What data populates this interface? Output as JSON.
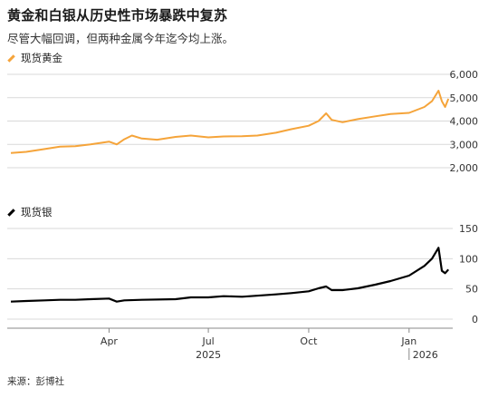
{
  "title": "黄金和白银从历史性市场暴跌中复苏",
  "subtitle": "尽管大幅回调，但两种金属今年迄今均上涨。",
  "source": "来源：彭博社",
  "colors": {
    "gold": "#f5a43a",
    "silver": "#000000",
    "grid": "#d9d9d9"
  },
  "chart_data": [
    {
      "type": "line",
      "series": [
        {
          "name": "现货黄金",
          "color": "#f5a43a"
        }
      ],
      "ylim": [
        2000,
        6000
      ],
      "yticks": [
        "2,000",
        "3,000",
        "4,000",
        "5,000",
        "6,000"
      ],
      "ytick_values": [
        2000,
        3000,
        4000,
        5000,
        6000
      ],
      "x": [
        "2025-01-01",
        "2025-01-15",
        "2025-02-01",
        "2025-02-15",
        "2025-03-01",
        "2025-03-15",
        "2025-04-01",
        "2025-04-08",
        "2025-04-15",
        "2025-04-22",
        "2025-05-01",
        "2025-05-15",
        "2025-06-01",
        "2025-06-15",
        "2025-07-01",
        "2025-07-15",
        "2025-08-01",
        "2025-08-15",
        "2025-09-01",
        "2025-09-15",
        "2025-10-01",
        "2025-10-10",
        "2025-10-17",
        "2025-10-22",
        "2025-11-01",
        "2025-11-15",
        "2025-12-01",
        "2025-12-15",
        "2026-01-01",
        "2026-01-15",
        "2026-01-22",
        "2026-01-28",
        "2026-01-31",
        "2026-02-03",
        "2026-02-06"
      ],
      "values": [
        2630,
        2680,
        2800,
        2900,
        2920,
        3000,
        3120,
        3000,
        3220,
        3380,
        3250,
        3200,
        3320,
        3380,
        3300,
        3340,
        3350,
        3380,
        3500,
        3650,
        3800,
        4000,
        4330,
        4050,
        3950,
        4080,
        4200,
        4300,
        4350,
        4600,
        4850,
        5300,
        4850,
        4600,
        4950
      ]
    },
    {
      "type": "line",
      "series": [
        {
          "name": "现货银",
          "color": "#000000"
        }
      ],
      "ylim": [
        0,
        150
      ],
      "yticks": [
        "0",
        "50",
        "100",
        "150"
      ],
      "ytick_values": [
        0,
        50,
        100,
        150
      ],
      "x": [
        "2025-01-01",
        "2025-01-15",
        "2025-02-01",
        "2025-02-15",
        "2025-03-01",
        "2025-03-15",
        "2025-04-01",
        "2025-04-08",
        "2025-04-15",
        "2025-05-01",
        "2025-06-01",
        "2025-06-15",
        "2025-07-01",
        "2025-07-15",
        "2025-08-01",
        "2025-09-01",
        "2025-09-15",
        "2025-10-01",
        "2025-10-10",
        "2025-10-17",
        "2025-10-22",
        "2025-11-01",
        "2025-11-15",
        "2025-12-01",
        "2025-12-15",
        "2026-01-01",
        "2026-01-15",
        "2026-01-22",
        "2026-01-28",
        "2026-01-31",
        "2026-02-03",
        "2026-02-06"
      ],
      "values": [
        29,
        30,
        31,
        32,
        32,
        33,
        34,
        29,
        31,
        32,
        33,
        36,
        36,
        38,
        37,
        41,
        43,
        46,
        51,
        54,
        48,
        48,
        51,
        57,
        63,
        72,
        88,
        100,
        118,
        80,
        76,
        82
      ]
    }
  ],
  "x_axis": {
    "months": [
      "Apr",
      "Jul",
      "Oct",
      "Jan"
    ],
    "years": [
      "2025",
      "2026"
    ]
  }
}
